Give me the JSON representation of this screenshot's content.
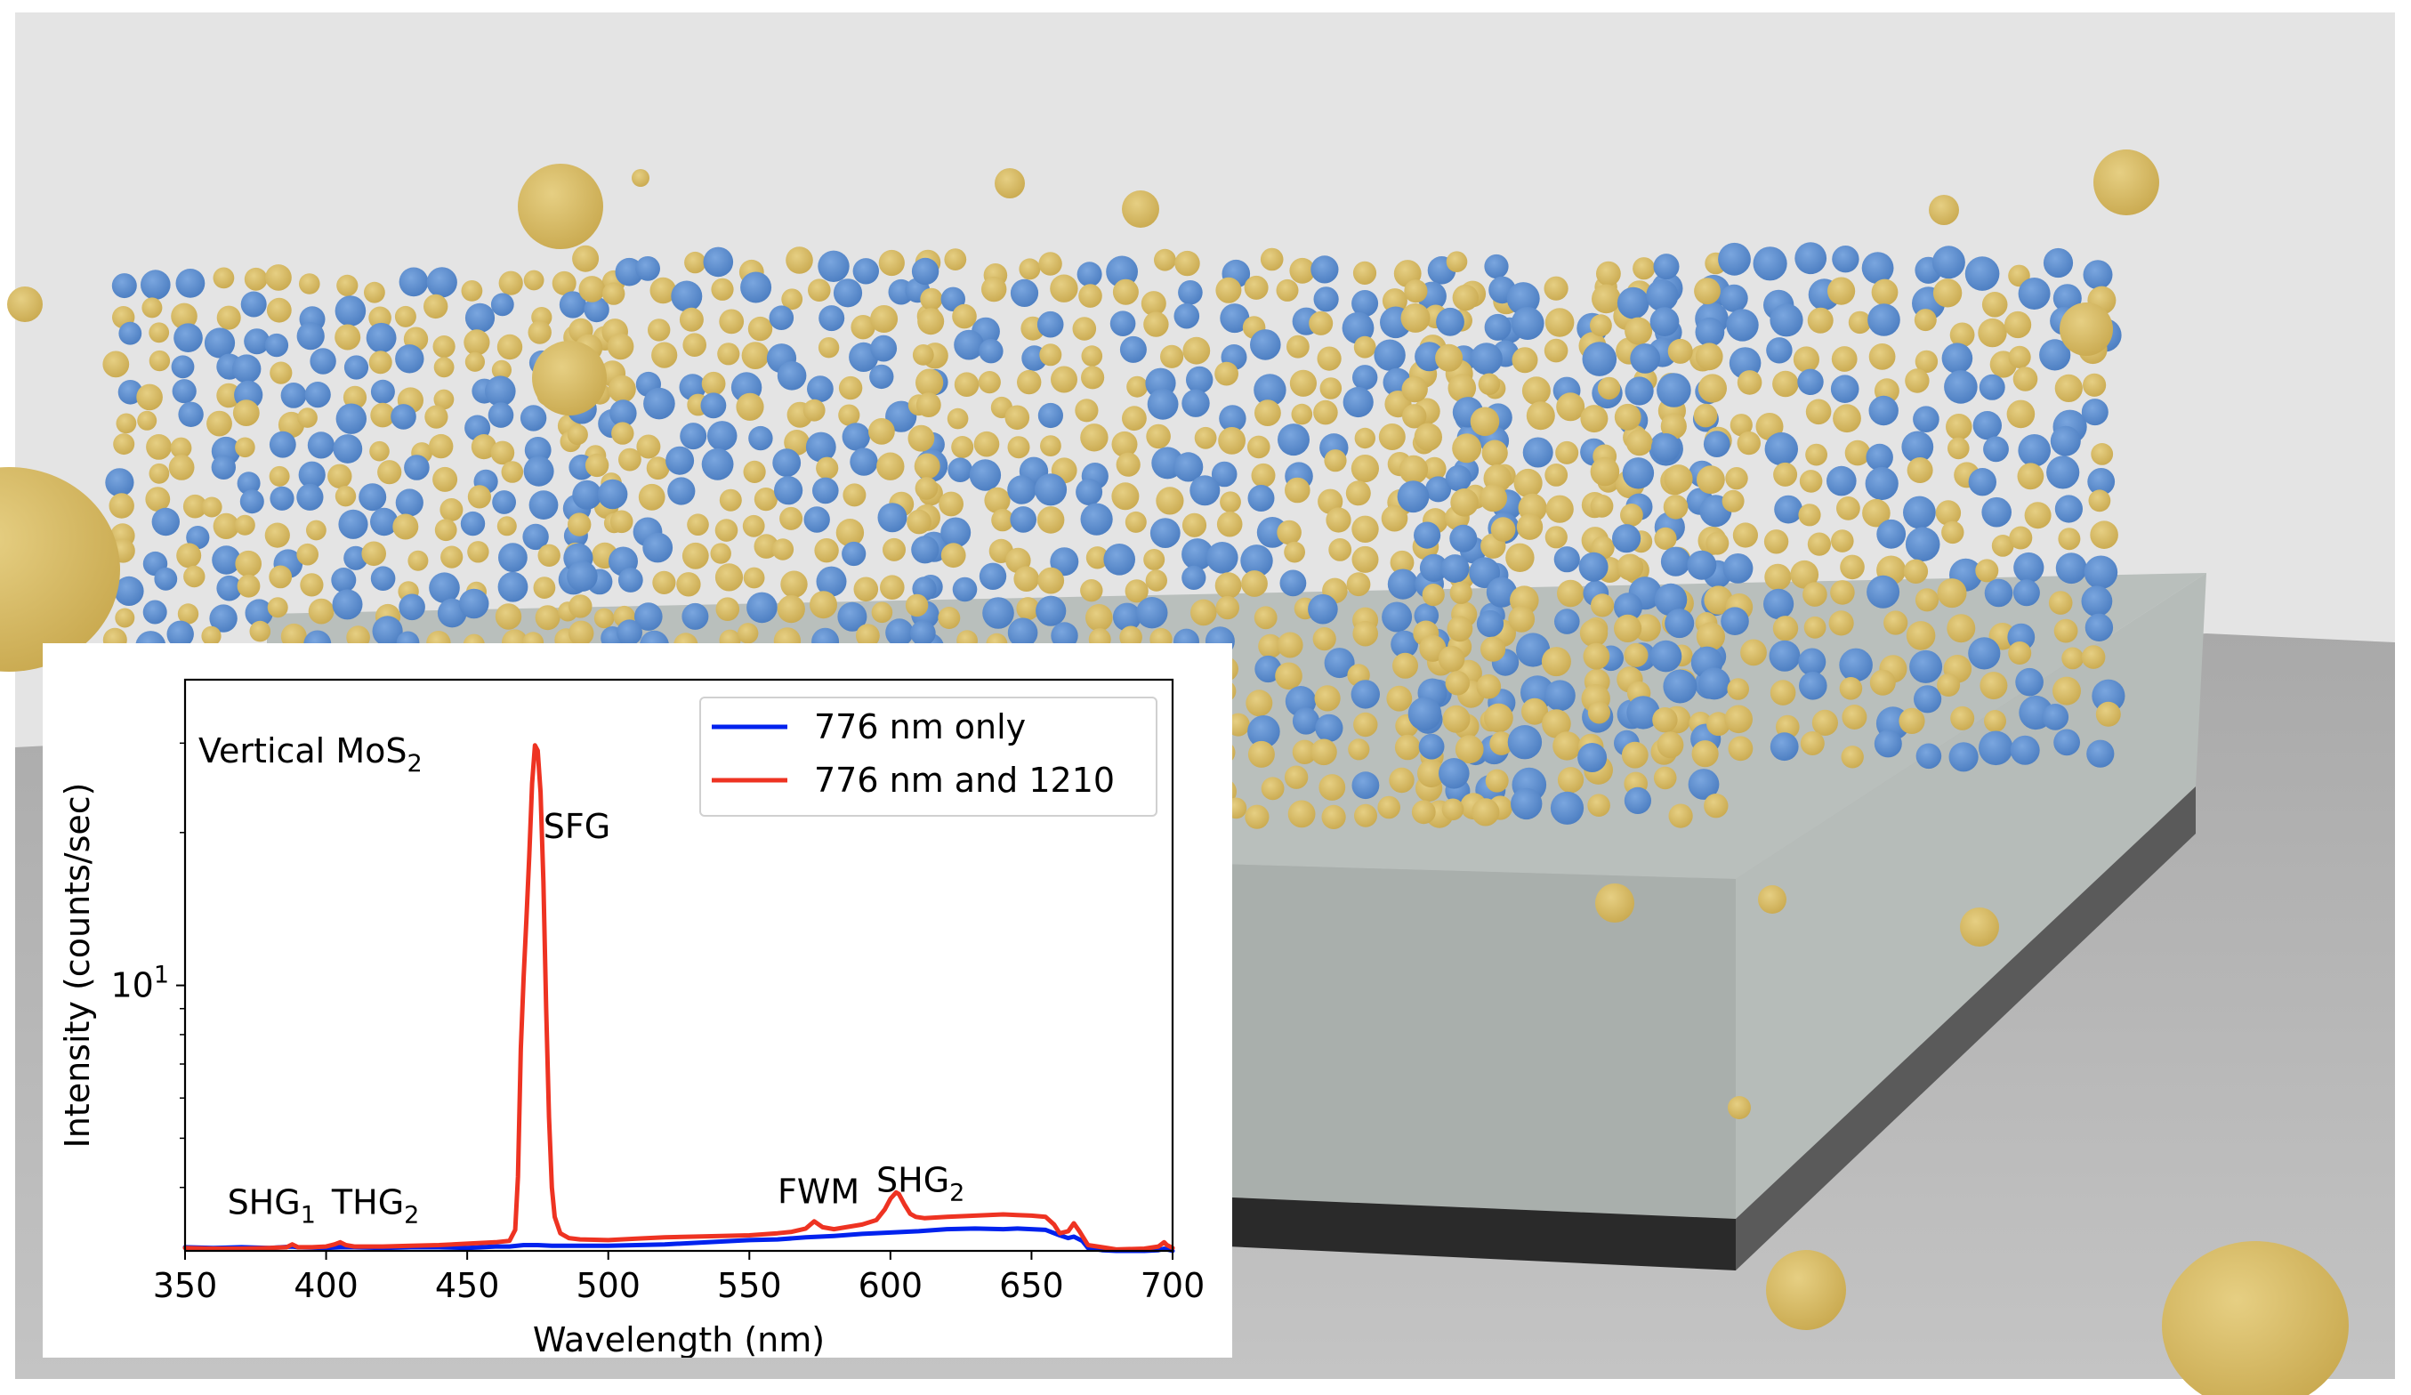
{
  "figure": {
    "scene_description": "Rendered 3D model of vertically aligned MoS2 layers on a substrate",
    "colors": {
      "background_wall": "#e4e4e4",
      "floor": "#c0c0c0",
      "substrate_top": "#b9bfbc",
      "substrate_front": "#a8aeab",
      "substrate_side": "#b4bab7",
      "base_front": "#2a2a2a",
      "base_side": "#5a5a5a",
      "sulfur_atom": "#d4b865",
      "molybdenum_atom": "#5b8fd0"
    }
  },
  "chart_data": {
    "type": "line",
    "title": "",
    "annotation_title": "Vertical MoS",
    "annotation_title_subscript": "2",
    "xlabel": "Wavelength (nm)",
    "ylabel": "Intensity (counts/sec)",
    "xlim": [
      350,
      700
    ],
    "ylim": [
      3.0,
      40
    ],
    "yscale": "log",
    "xticks": [
      350,
      400,
      450,
      500,
      550,
      600,
      650,
      700
    ],
    "xtick_labels": [
      "350",
      "400",
      "450",
      "500",
      "550",
      "600",
      "650",
      "700"
    ],
    "yticks_major": [
      10
    ],
    "ytick_major_labels": [
      {
        "base": "10",
        "exp": "1"
      }
    ],
    "yticks_minor": [
      4,
      5,
      6,
      7,
      8,
      9,
      20,
      30
    ],
    "grid": false,
    "legend_position": "top-right",
    "series": [
      {
        "name": "776 nm only",
        "color": "#0022ee",
        "x": [
          350,
          360,
          370,
          380,
          388,
          390,
          400,
          405,
          410,
          420,
          430,
          440,
          450,
          460,
          465,
          470,
          475,
          480,
          490,
          500,
          510,
          520,
          530,
          540,
          550,
          560,
          570,
          575,
          580,
          590,
          600,
          605,
          610,
          620,
          630,
          640,
          645,
          650,
          655,
          660,
          663,
          665,
          668,
          670,
          675,
          680,
          690,
          695,
          697,
          700
        ],
        "y": [
          3.05,
          3.04,
          3.05,
          3.04,
          3.06,
          3.05,
          3.04,
          3.05,
          3.05,
          3.04,
          3.05,
          3.05,
          3.04,
          3.06,
          3.06,
          3.08,
          3.08,
          3.07,
          3.07,
          3.07,
          3.08,
          3.09,
          3.11,
          3.13,
          3.15,
          3.16,
          3.19,
          3.2,
          3.21,
          3.24,
          3.26,
          3.27,
          3.28,
          3.31,
          3.32,
          3.31,
          3.32,
          3.31,
          3.3,
          3.22,
          3.18,
          3.2,
          3.14,
          3.04,
          3.01,
          3.0,
          3.0,
          3.01,
          3.03,
          3.0
        ]
      },
      {
        "name": "776 nm and 1210",
        "color": "#ee3322",
        "x": [
          350,
          360,
          370,
          380,
          386,
          388,
          390,
          395,
          400,
          403,
          405,
          407,
          410,
          420,
          430,
          440,
          450,
          460,
          465,
          467,
          468,
          469,
          470,
          471,
          472,
          473,
          474,
          475,
          476,
          477,
          478,
          479,
          480,
          481,
          483,
          486,
          490,
          500,
          510,
          520,
          530,
          540,
          550,
          560,
          565,
          570,
          573,
          576,
          580,
          590,
          595,
          598,
          600,
          602,
          603,
          605,
          607,
          609,
          612,
          620,
          630,
          640,
          645,
          650,
          655,
          658,
          660,
          663,
          665,
          667,
          670,
          675,
          680,
          690,
          695,
          697,
          698,
          700
        ],
        "y": [
          3.04,
          3.03,
          3.03,
          3.04,
          3.05,
          3.09,
          3.05,
          3.05,
          3.06,
          3.09,
          3.12,
          3.08,
          3.06,
          3.06,
          3.07,
          3.08,
          3.1,
          3.12,
          3.14,
          3.3,
          4.2,
          7.5,
          10.4,
          13.5,
          18.0,
          25.0,
          29.7,
          29.0,
          24.0,
          16.0,
          9.0,
          5.5,
          4.0,
          3.5,
          3.25,
          3.18,
          3.16,
          3.15,
          3.17,
          3.19,
          3.2,
          3.21,
          3.22,
          3.25,
          3.27,
          3.32,
          3.43,
          3.34,
          3.31,
          3.38,
          3.45,
          3.62,
          3.8,
          3.91,
          3.88,
          3.7,
          3.55,
          3.5,
          3.48,
          3.5,
          3.52,
          3.54,
          3.53,
          3.52,
          3.5,
          3.38,
          3.25,
          3.28,
          3.4,
          3.28,
          3.08,
          3.05,
          3.02,
          3.03,
          3.06,
          3.12,
          3.08,
          3.04
        ]
      }
    ],
    "annotations": [
      {
        "text": "SFG",
        "sub": "",
        "x": 477,
        "y": 19.5
      },
      {
        "text": "SHG",
        "sub": "1",
        "x": 365,
        "y": 3.55
      },
      {
        "text": "THG",
        "sub": "2",
        "x": 402,
        "y": 3.55
      },
      {
        "text": "FWM",
        "sub": "",
        "x": 560,
        "y": 3.72
      },
      {
        "text": "SHG",
        "sub": "2",
        "x": 595,
        "y": 3.92
      }
    ]
  }
}
